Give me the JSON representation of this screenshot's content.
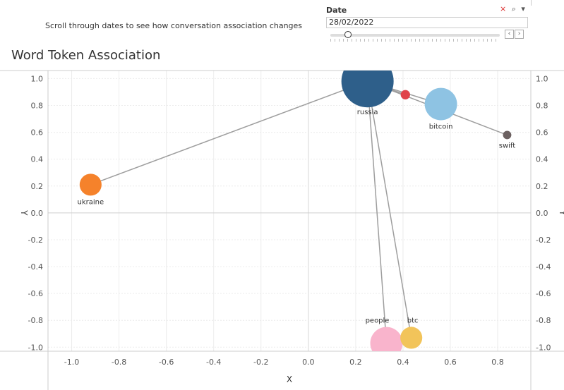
{
  "caption": "Scroll through dates to see how conversation association changes",
  "filter": {
    "label": "Date",
    "value": "28/02/2022",
    "icons": [
      "clear-filter-icon",
      "search-icon",
      "dropdown-icon"
    ],
    "slider_position": 0.1
  },
  "colors": {
    "russia": "#2e5f8a",
    "bitcoin": "#8ec3e3",
    "ukraine": "#f5822b",
    "swift": "#6b6060",
    "unlabeled": "#e0434a",
    "people": "#f9b4cc",
    "btc": "#f2c45a",
    "edge": "#9e9e9e",
    "grid": "#ececec"
  },
  "chart_data": {
    "type": "scatter",
    "title": "Word Token Association",
    "xlabel": "X",
    "ylabel": "Y",
    "xlim": [
      -1.1,
      0.94
    ],
    "ylim": [
      -1.03,
      1.06
    ],
    "x_ticks": [
      -1.0,
      -0.8,
      -0.6,
      -0.4,
      -0.2,
      0.0,
      0.2,
      0.4,
      0.6,
      0.8
    ],
    "x_tick_labels": [
      "-1.0",
      "-0.8",
      "-0.6",
      "-0.4",
      "-0.2",
      "0.0",
      "0.2",
      "0.4",
      "0.6",
      "0.8"
    ],
    "y_ticks": [
      1.0,
      0.8,
      0.6,
      0.4,
      0.2,
      0.0,
      -0.2,
      -0.4,
      -0.6,
      -0.8,
      -1.0
    ],
    "y_tick_labels": [
      "1.0",
      "0.8",
      "0.6",
      "0.4",
      "0.2",
      "0.0",
      "-0.2",
      "-0.4",
      "-0.6",
      "-0.8",
      "-1.0"
    ],
    "grid": true,
    "nodes": [
      {
        "id": "russia",
        "label": "russia",
        "x": 0.25,
        "y": 0.98,
        "size": 1.0
      },
      {
        "id": "unlabeled",
        "label": "",
        "x": 0.41,
        "y": 0.88,
        "size": 0.18
      },
      {
        "id": "bitcoin",
        "label": "bitcoin",
        "x": 0.56,
        "y": 0.81,
        "size": 0.62
      },
      {
        "id": "swift",
        "label": "swift",
        "x": 0.84,
        "y": 0.58,
        "size": 0.16
      },
      {
        "id": "ukraine",
        "label": "ukraine",
        "x": -0.92,
        "y": 0.21,
        "size": 0.42
      },
      {
        "id": "people",
        "label": "people",
        "x": 0.33,
        "y": -0.97,
        "size": 0.62
      },
      {
        "id": "btc",
        "label": "btc",
        "x": 0.435,
        "y": -0.93,
        "size": 0.42
      }
    ],
    "edges": [
      [
        "russia",
        "ukraine"
      ],
      [
        "russia",
        "unlabeled"
      ],
      [
        "russia",
        "bitcoin"
      ],
      [
        "russia",
        "swift"
      ],
      [
        "russia",
        "people"
      ],
      [
        "russia",
        "btc"
      ]
    ]
  }
}
